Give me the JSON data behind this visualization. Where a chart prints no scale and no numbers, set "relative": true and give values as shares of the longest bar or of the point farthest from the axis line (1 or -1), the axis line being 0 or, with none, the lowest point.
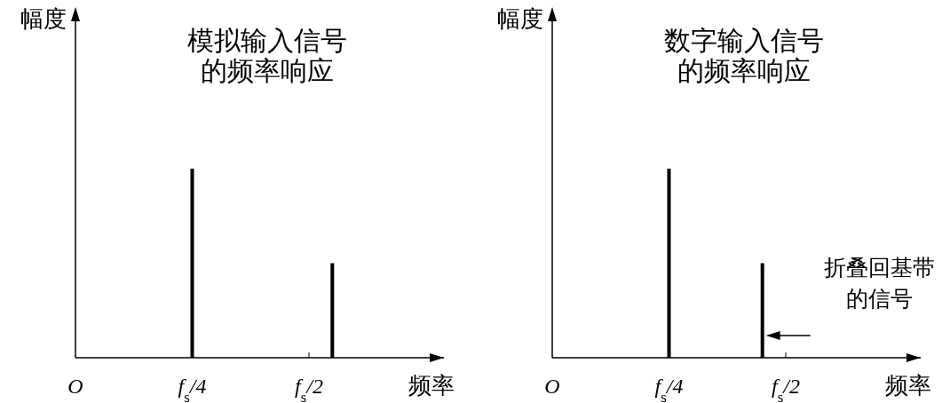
{
  "chart_data": [
    {
      "type": "bar",
      "title": "模拟输入信号的频率响应",
      "ylabel": "幅度",
      "xlabel": "频率",
      "relative": true,
      "color": "#000000",
      "categories": [
        "O",
        null,
        null,
        null,
        null,
        null,
        null,
        null,
        null,
        null,
        "f$_{s}$/4",
        null,
        null,
        null,
        null,
        null,
        null,
        null,
        null,
        null,
        "f$_{s}$/2",
        null,
        null,
        null,
        null,
        null,
        null,
        null,
        null,
        null,
        null,
        null
      ],
      "values": [
        null,
        null,
        null,
        null,
        null,
        null,
        null,
        null,
        null,
        null,
        1,
        null,
        null,
        null,
        null,
        null,
        null,
        null,
        null,
        null,
        null,
        null,
        0.5,
        null,
        null,
        null,
        null,
        null,
        null,
        null,
        null,
        null
      ]
    },
    {
      "type": "bar",
      "title": "数字输入信号的频率响应",
      "ylabel": "幅度",
      "xlabel": "频率",
      "relative": true,
      "color": "#000000",
      "categories": [
        "O",
        null,
        null,
        null,
        null,
        null,
        null,
        null,
        null,
        null,
        "f$_{s}$/4",
        null,
        null,
        null,
        null,
        null,
        null,
        null,
        null,
        null,
        "f$_{s}$/2",
        null,
        null,
        null,
        null,
        null,
        null,
        null,
        null,
        null,
        null,
        null
      ],
      "values": [
        null,
        null,
        null,
        null,
        null,
        null,
        null,
        null,
        null,
        null,
        1,
        null,
        null,
        null,
        null,
        null,
        null,
        null,
        0.5,
        null,
        null,
        null,
        null,
        null,
        null,
        null,
        null,
        null,
        null,
        null,
        null,
        null
      ],
      "annotations": [
        "折叠回基带的信号"
      ]
    }
  ]
}
